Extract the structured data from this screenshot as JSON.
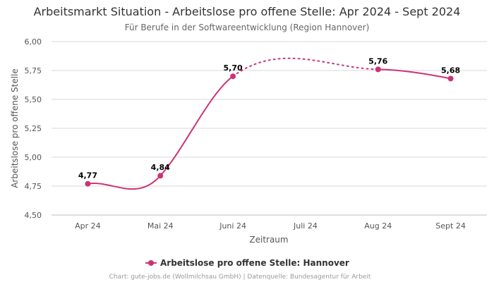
{
  "chart_data": {
    "type": "line",
    "title": "Arbeitsmarkt Situation - Arbeitslose pro offene Stelle: Apr 2024 - Sept 2024",
    "subtitle": "Für Berufe in der Softwareentwicklung (Region Hannover)",
    "xlabel": "Zeitraum",
    "ylabel": "Arbeitslose pro offene Stelle",
    "categories": [
      "Apr 24",
      "Mai 24",
      "Juni 24",
      "Juli 24",
      "Aug 24",
      "Sept 24"
    ],
    "ylim": [
      4.5,
      6.0
    ],
    "yticks": [
      "4,50",
      "4,75",
      "5,00",
      "5,25",
      "5,50",
      "5,75",
      "6,00"
    ],
    "grid": true,
    "legend_position": "bottom-center",
    "series": [
      {
        "name": "Arbeitslose pro offene Stelle: Hannover",
        "color": "#cc3377",
        "values": [
          4.77,
          4.84,
          5.7,
          null,
          5.76,
          5.68
        ],
        "labels": [
          "4,77",
          "4,84",
          "5,70",
          "",
          "5,76",
          "5,68"
        ],
        "gap_style": "dotted"
      }
    ],
    "credits": "Chart: gute-jobs.de (Wollmilchsau GmbH) | Datenquelle: Bundesagentur für Arbeit"
  }
}
